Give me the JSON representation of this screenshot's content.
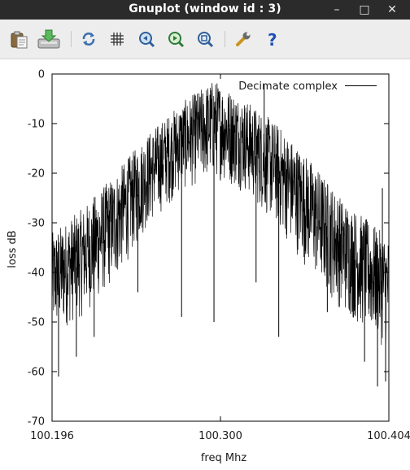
{
  "window": {
    "title": "Gnuplot (window id : 3)",
    "minimize_glyph": "–",
    "maximize_glyph": "□",
    "close_glyph": "✕"
  },
  "toolbar": {
    "buttons": [
      {
        "name": "copy-to-clipboard",
        "icon": "clipboard-icon"
      },
      {
        "name": "export",
        "icon": "download-icon"
      },
      {
        "name": "replot",
        "icon": "refresh-icon"
      },
      {
        "name": "toggle-grid",
        "icon": "grid-icon"
      },
      {
        "name": "zoom-previous",
        "icon": "zoom-previous-icon"
      },
      {
        "name": "zoom-next",
        "icon": "zoom-next-icon"
      },
      {
        "name": "autoscale",
        "icon": "zoom-fit-icon"
      },
      {
        "name": "options",
        "icon": "wrench-icon"
      },
      {
        "name": "help",
        "icon": "help-icon"
      }
    ]
  },
  "chart_data": {
    "type": "line",
    "title": "",
    "xlabel": "freq Mhz",
    "ylabel": "loss dB",
    "xlim": [
      100.196,
      100.404
    ],
    "ylim": [
      -70,
      0
    ],
    "x_ticks": [
      "100.196",
      "100.300",
      "100.404"
    ],
    "y_ticks": [
      "0",
      "-10",
      "-20",
      "-30",
      "-40",
      "-50",
      "-60",
      "-70"
    ],
    "grid": false,
    "legend_position": "top-right",
    "series": [
      {
        "name": "Decimate complex",
        "color": "#000000",
        "envelope_upper": [
          {
            "x": 100.196,
            "y": -32
          },
          {
            "x": 100.215,
            "y": -27
          },
          {
            "x": 100.235,
            "y": -20
          },
          {
            "x": 100.255,
            "y": -12
          },
          {
            "x": 100.275,
            "y": -6
          },
          {
            "x": 100.296,
            "y": -1
          },
          {
            "x": 100.315,
            "y": -5
          },
          {
            "x": 100.335,
            "y": -10
          },
          {
            "x": 100.355,
            "y": -17
          },
          {
            "x": 100.375,
            "y": -25
          },
          {
            "x": 100.404,
            "y": -33
          }
        ],
        "envelope_lower": [
          {
            "x": 100.196,
            "y": -53
          },
          {
            "x": 100.215,
            "y": -49
          },
          {
            "x": 100.235,
            "y": -42
          },
          {
            "x": 100.255,
            "y": -31
          },
          {
            "x": 100.275,
            "y": -24
          },
          {
            "x": 100.296,
            "y": -21
          },
          {
            "x": 100.315,
            "y": -24
          },
          {
            "x": 100.335,
            "y": -31
          },
          {
            "x": 100.355,
            "y": -40
          },
          {
            "x": 100.375,
            "y": -48
          },
          {
            "x": 100.404,
            "y": -56
          }
        ],
        "spikes": [
          {
            "x": 100.2,
            "y": -61
          },
          {
            "x": 100.211,
            "y": -57
          },
          {
            "x": 100.222,
            "y": -53
          },
          {
            "x": 100.249,
            "y": -44
          },
          {
            "x": 100.276,
            "y": -49
          },
          {
            "x": 100.296,
            "y": -50
          },
          {
            "x": 100.322,
            "y": -42
          },
          {
            "x": 100.336,
            "y": -53
          },
          {
            "x": 100.366,
            "y": -48
          },
          {
            "x": 100.389,
            "y": -58
          },
          {
            "x": 100.397,
            "y": -63
          },
          {
            "x": 100.402,
            "y": -62
          },
          {
            "x": 100.4,
            "y": -23
          },
          {
            "x": 100.327,
            "y": -2
          }
        ]
      }
    ]
  }
}
